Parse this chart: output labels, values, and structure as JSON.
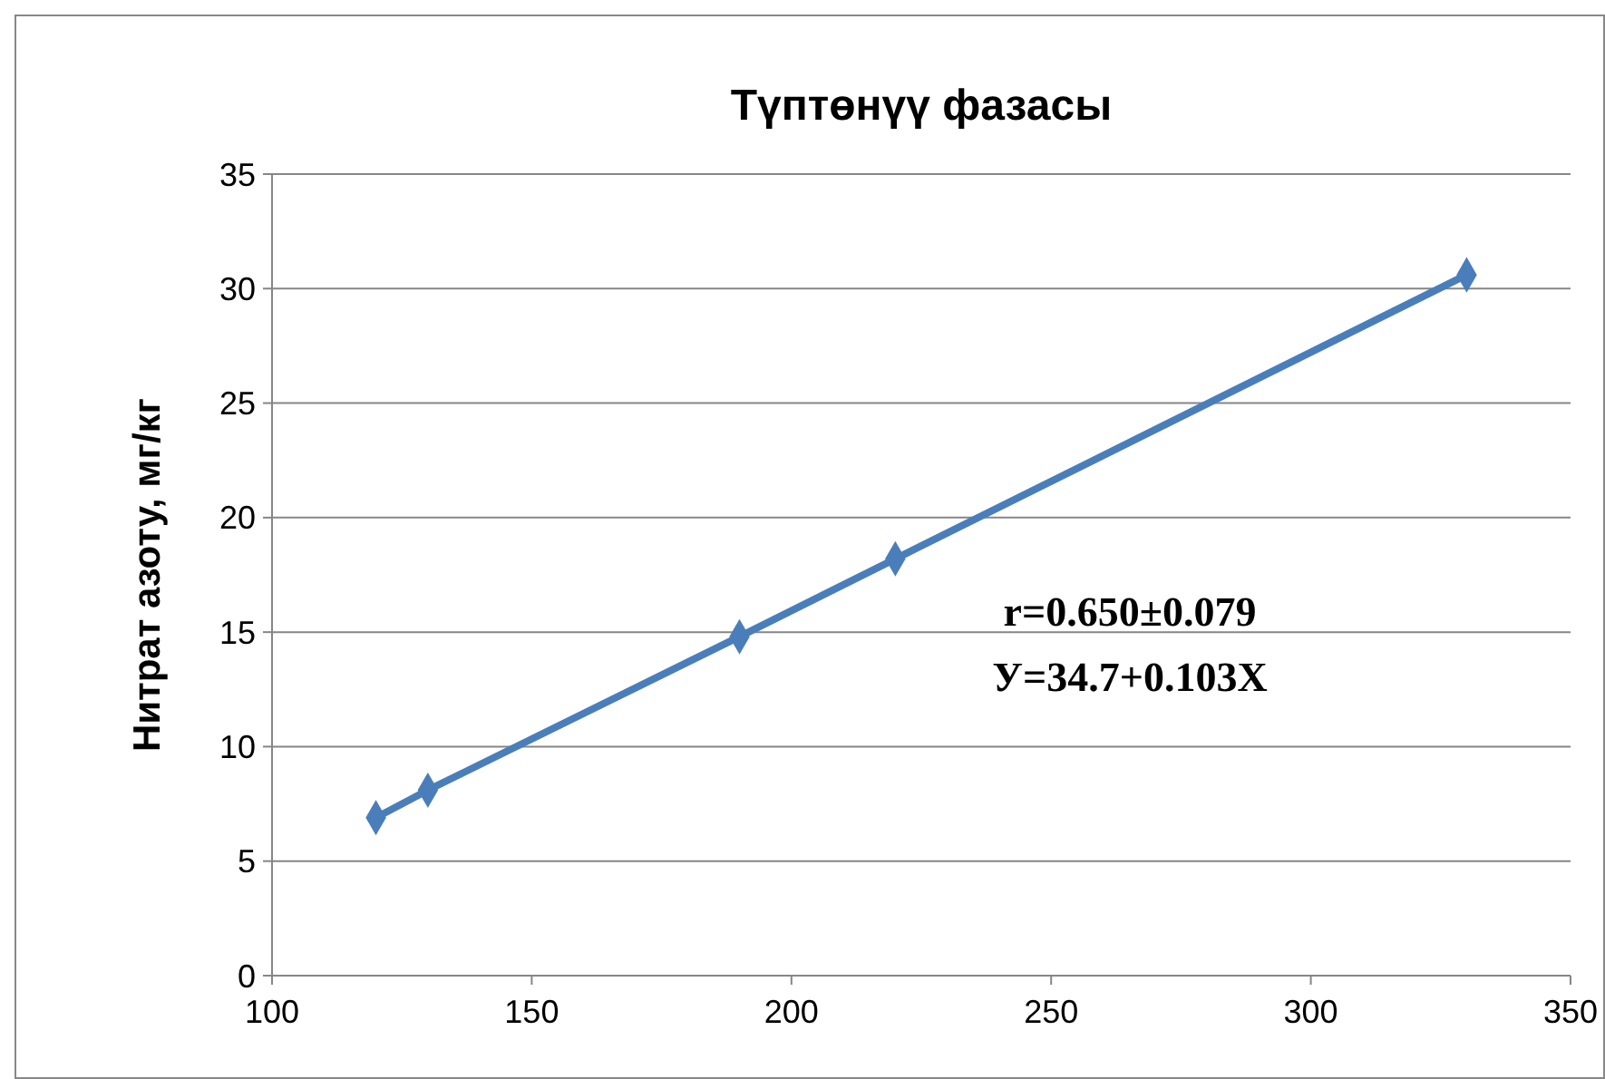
{
  "chart_data": {
    "type": "line",
    "title": "Түптөнүү фазасы",
    "ylabel": "Нитрат азоту, мг/кг",
    "x": [
      120,
      130,
      190,
      220,
      330
    ],
    "series": [
      {
        "color": "#4a7ebb",
        "values": [
          6.9,
          8.1,
          14.8,
          18.2,
          30.6
        ]
      }
    ],
    "xlim": [
      100,
      350
    ],
    "xticks": [
      100,
      150,
      200,
      250,
      300,
      350
    ],
    "ylim": [
      0,
      35
    ],
    "yticks": [
      0,
      5,
      10,
      15,
      20,
      25,
      30,
      35
    ],
    "grid": "y",
    "marker": "diamond",
    "line_style": "solid",
    "annotations": [
      "r=0.650±0.079",
      "У=34.7+0.103Х"
    ]
  }
}
